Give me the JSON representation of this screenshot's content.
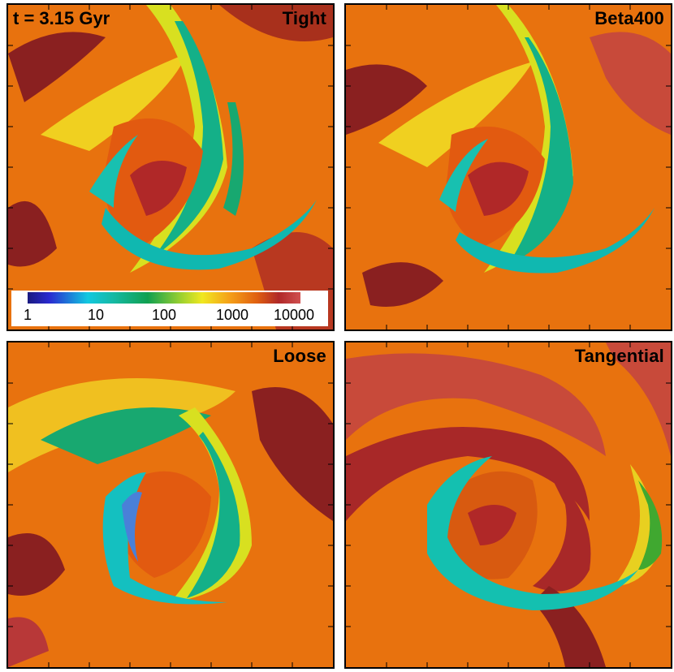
{
  "time_label": "t = 3.15 Gyr",
  "panels": [
    {
      "id": "tight",
      "label": "Tight"
    },
    {
      "id": "beta400",
      "label": "Beta400"
    },
    {
      "id": "loose",
      "label": "Loose"
    },
    {
      "id": "tangential",
      "label": "Tangential"
    }
  ],
  "colorbar": {
    "ticks": [
      "1",
      "10",
      "100",
      "1000",
      "10000"
    ],
    "scale": "log",
    "colors": [
      "#1a1a80",
      "#12c8e0",
      "#10a050",
      "#f0e820",
      "#e06010",
      "#b02828"
    ]
  }
}
